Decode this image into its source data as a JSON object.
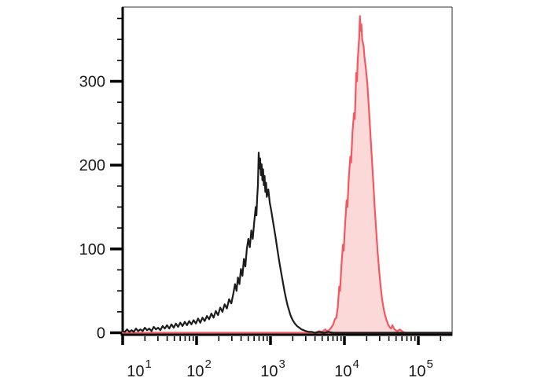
{
  "figure": {
    "background": "#ffffff"
  },
  "chart_data": {
    "type": "area",
    "title": "",
    "xlabel": "",
    "ylabel": "",
    "grid": false,
    "legend": false,
    "x_axis": {
      "scale": "log10",
      "min_exponent": 1,
      "max_exponent": 5.45,
      "tick_label_base": "10",
      "major_tick_exponents": [
        1,
        2,
        3,
        4,
        5
      ],
      "minor_tick_multiples": [
        2,
        3,
        4,
        5,
        6,
        7,
        8,
        9
      ]
    },
    "y_axis": {
      "scale": "linear",
      "min": 0,
      "max": 390,
      "major_ticks": [
        0,
        100,
        200,
        300
      ],
      "major_tick_labels": [
        "0",
        "100",
        "200",
        "300"
      ],
      "minor_tick_step": 25
    },
    "colors": {
      "axis": "#000000",
      "frame": "#5a5a5a",
      "tick_text": "#1a1a1a"
    },
    "series": [
      {
        "name": "black-open-histogram",
        "stroke": "#1c1c1c",
        "fill": "none",
        "points": [
          [
            1.0,
            2
          ],
          [
            1.03,
            1
          ],
          [
            1.06,
            4
          ],
          [
            1.09,
            1
          ],
          [
            1.12,
            3
          ],
          [
            1.15,
            1
          ],
          [
            1.18,
            5
          ],
          [
            1.21,
            2
          ],
          [
            1.24,
            4
          ],
          [
            1.27,
            2
          ],
          [
            1.3,
            6
          ],
          [
            1.33,
            3
          ],
          [
            1.36,
            5
          ],
          [
            1.39,
            2
          ],
          [
            1.42,
            7
          ],
          [
            1.45,
            4
          ],
          [
            1.48,
            6
          ],
          [
            1.51,
            3
          ],
          [
            1.54,
            8
          ],
          [
            1.57,
            5
          ],
          [
            1.6,
            9
          ],
          [
            1.63,
            5
          ],
          [
            1.66,
            10
          ],
          [
            1.69,
            6
          ],
          [
            1.72,
            11
          ],
          [
            1.75,
            7
          ],
          [
            1.78,
            12
          ],
          [
            1.81,
            8
          ],
          [
            1.84,
            13
          ],
          [
            1.87,
            9
          ],
          [
            1.9,
            14
          ],
          [
            1.93,
            10
          ],
          [
            1.96,
            15
          ],
          [
            1.99,
            11
          ],
          [
            2.02,
            17
          ],
          [
            2.05,
            12
          ],
          [
            2.08,
            18
          ],
          [
            2.11,
            14
          ],
          [
            2.14,
            20
          ],
          [
            2.17,
            16
          ],
          [
            2.2,
            23
          ],
          [
            2.23,
            18
          ],
          [
            2.26,
            26
          ],
          [
            2.29,
            21
          ],
          [
            2.32,
            30
          ],
          [
            2.35,
            25
          ],
          [
            2.38,
            34
          ],
          [
            2.41,
            29
          ],
          [
            2.44,
            40
          ],
          [
            2.47,
            35
          ],
          [
            2.5,
            48
          ],
          [
            2.52,
            58
          ],
          [
            2.54,
            50
          ],
          [
            2.56,
            66
          ],
          [
            2.58,
            58
          ],
          [
            2.6,
            76
          ],
          [
            2.62,
            68
          ],
          [
            2.64,
            88
          ],
          [
            2.66,
            79
          ],
          [
            2.68,
            100
          ],
          [
            2.7,
            112
          ],
          [
            2.72,
            102
          ],
          [
            2.74,
            122
          ],
          [
            2.76,
            112
          ],
          [
            2.78,
            132
          ],
          [
            2.8,
            150
          ],
          [
            2.81,
            140
          ],
          [
            2.82,
            162
          ],
          [
            2.83,
            176
          ],
          [
            2.84,
            215
          ],
          [
            2.85,
            196
          ],
          [
            2.86,
            208
          ],
          [
            2.87,
            188
          ],
          [
            2.88,
            201
          ],
          [
            2.89,
            182
          ],
          [
            2.9,
            195
          ],
          [
            2.91,
            176
          ],
          [
            2.92,
            187
          ],
          [
            2.93,
            168
          ],
          [
            2.94,
            179
          ],
          [
            2.95,
            162
          ],
          [
            2.97,
            171
          ],
          [
            2.99,
            155
          ],
          [
            3.01,
            146
          ],
          [
            3.03,
            135
          ],
          [
            3.05,
            124
          ],
          [
            3.07,
            113
          ],
          [
            3.09,
            101
          ],
          [
            3.11,
            90
          ],
          [
            3.13,
            79
          ],
          [
            3.15,
            69
          ],
          [
            3.17,
            59
          ],
          [
            3.19,
            49
          ],
          [
            3.21,
            41
          ],
          [
            3.23,
            33
          ],
          [
            3.25,
            27
          ],
          [
            3.27,
            21
          ],
          [
            3.3,
            15
          ],
          [
            3.33,
            11
          ],
          [
            3.36,
            8
          ],
          [
            3.39,
            6
          ],
          [
            3.42,
            4
          ],
          [
            3.45,
            3
          ],
          [
            3.48,
            2
          ],
          [
            3.52,
            1
          ],
          [
            3.56,
            1
          ],
          [
            3.6,
            0
          ],
          [
            3.66,
            1
          ],
          [
            3.72,
            0
          ],
          [
            3.78,
            1
          ],
          [
            3.85,
            0
          ],
          [
            5.45,
            0
          ]
        ]
      },
      {
        "name": "red-filled-histogram",
        "stroke": "#F4575F",
        "fill": "#FBD9D8",
        "points": [
          [
            1.0,
            0
          ],
          [
            3.6,
            0
          ],
          [
            3.66,
            2
          ],
          [
            3.7,
            1
          ],
          [
            3.74,
            4
          ],
          [
            3.76,
            2
          ],
          [
            3.79,
            3
          ],
          [
            3.82,
            6
          ],
          [
            3.85,
            10
          ],
          [
            3.87,
            16
          ],
          [
            3.89,
            18
          ],
          [
            3.91,
            30
          ],
          [
            3.93,
            55
          ],
          [
            3.94,
            50
          ],
          [
            3.96,
            80
          ],
          [
            3.98,
            105
          ],
          [
            3.99,
            98
          ],
          [
            4.01,
            130
          ],
          [
            4.03,
            158
          ],
          [
            4.04,
            150
          ],
          [
            4.06,
            185
          ],
          [
            4.08,
            210
          ],
          [
            4.09,
            203
          ],
          [
            4.11,
            240
          ],
          [
            4.13,
            262
          ],
          [
            4.14,
            255
          ],
          [
            4.15,
            280
          ],
          [
            4.16,
            310
          ],
          [
            4.17,
            300
          ],
          [
            4.18,
            325
          ],
          [
            4.19,
            340
          ],
          [
            4.2,
            352
          ],
          [
            4.21,
            378
          ],
          [
            4.22,
            360
          ],
          [
            4.23,
            368
          ],
          [
            4.24,
            350
          ],
          [
            4.26,
            342
          ],
          [
            4.27,
            330
          ],
          [
            4.29,
            315
          ],
          [
            4.31,
            298
          ],
          [
            4.33,
            270
          ],
          [
            4.35,
            240
          ],
          [
            4.37,
            210
          ],
          [
            4.39,
            180
          ],
          [
            4.41,
            150
          ],
          [
            4.43,
            122
          ],
          [
            4.45,
            96
          ],
          [
            4.47,
            74
          ],
          [
            4.49,
            55
          ],
          [
            4.51,
            40
          ],
          [
            4.53,
            29
          ],
          [
            4.55,
            21
          ],
          [
            4.57,
            15
          ],
          [
            4.59,
            10
          ],
          [
            4.61,
            7
          ],
          [
            4.63,
            5
          ],
          [
            4.65,
            9
          ],
          [
            4.67,
            5
          ],
          [
            4.69,
            3
          ],
          [
            4.72,
            2
          ],
          [
            4.75,
            4
          ],
          [
            4.79,
            1
          ],
          [
            4.83,
            0
          ],
          [
            5.45,
            0
          ]
        ]
      }
    ]
  }
}
